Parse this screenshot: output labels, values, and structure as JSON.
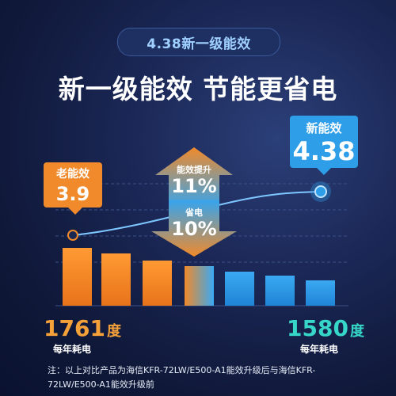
{
  "badge": "4.38新一级能效",
  "headline": "新一级能效 节能更省电",
  "old_callout": {
    "label": "老能效",
    "value": "3.9"
  },
  "new_callout": {
    "label": "新能效",
    "value": "4.38"
  },
  "up_arrow": {
    "label": "能效提升",
    "value": "11%"
  },
  "down_arrow": {
    "label": "省电",
    "value": "10%"
  },
  "left_stat": {
    "value": "1761",
    "unit": "度",
    "caption": "每年耗电"
  },
  "right_stat": {
    "value": "1580",
    "unit": "度",
    "caption": "每年耗电"
  },
  "note": "注：以上对比产品为海信KFR-72LW/E500-A1能效升级后与海信KFR-72LW/E500-A1能效升级前",
  "colors": {
    "orange": "#f08a2a",
    "blue": "#2f9ee8",
    "teal": "#36d6c8"
  },
  "chart_data": {
    "type": "bar",
    "bar_count": 7,
    "start_value": 1761,
    "end_value": 1580,
    "unit": "度",
    "trend_line": {
      "start": 3.9,
      "end": 4.38
    }
  }
}
